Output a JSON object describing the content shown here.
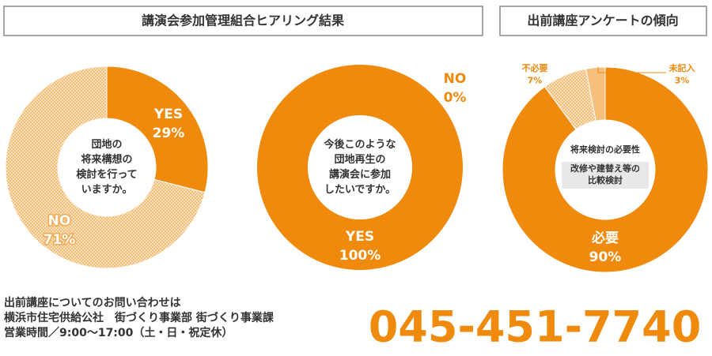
{
  "headers": [
    "講演会参加管理組合ヒアリング結果",
    "出前講座アンケートの傾向"
  ],
  "chart_data": [
    {
      "type": "pie",
      "center_text": [
        "団地の",
        "将来構想の",
        "検討を行って",
        "いますか。"
      ],
      "categories": [
        "YES",
        "NO"
      ],
      "values": [
        29,
        71
      ],
      "value_labels": [
        "29%",
        "71%"
      ],
      "colors": [
        "#f08a0c",
        "hatch"
      ]
    },
    {
      "type": "pie",
      "center_text": [
        "今後このような",
        "団地再生の",
        "講演会に参加",
        "したいですか。"
      ],
      "categories": [
        "YES",
        "NO"
      ],
      "values": [
        100,
        0
      ],
      "value_labels": [
        "100%",
        "0%"
      ],
      "colors": [
        "#f08a0c",
        "hatch"
      ]
    },
    {
      "type": "pie",
      "center_title": "将来検討の必要性",
      "center_text": [
        "改修や建替え等の",
        "比較検討"
      ],
      "categories": [
        "必要",
        "不必要",
        "未記入"
      ],
      "values": [
        90,
        7,
        3
      ],
      "value_labels": [
        "90%",
        "7%",
        "3%"
      ],
      "colors": [
        "#f08a0c",
        "hatch",
        "#f6c07c"
      ]
    }
  ],
  "footer": {
    "lines": [
      "出前講座についてのお問い合わせは",
      "横浜市住宅供給公社　街づくり事業部 街づくり事業課",
      "営業時間／9:00～17:00（土・日・祝定休）"
    ],
    "phone": "045-451-7740"
  }
}
